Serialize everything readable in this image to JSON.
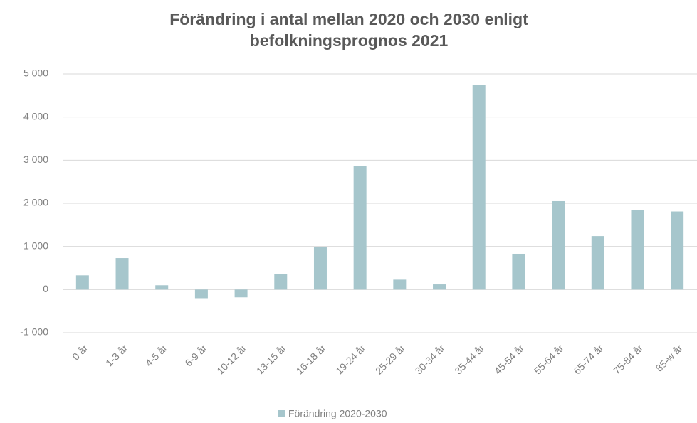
{
  "chart_data": {
    "type": "bar",
    "title": "Förändring i antal mellan 2020 och 2030 enligt befolkningsprognos 2021",
    "categories": [
      "0 år",
      "1-3 år",
      "4-5 år",
      "6-9 år",
      "10-12 år",
      "13-15 år",
      "16-18 år",
      "19-24 år",
      "25-29 år",
      "30-34 år",
      "35-44 år",
      "45-54 år",
      "55-64 år",
      "65-74 år",
      "75-84 år",
      "85-w år"
    ],
    "series": [
      {
        "name": "Förändring 2020-2030",
        "color": "#a6c6cc",
        "values": [
          330,
          730,
          100,
          -200,
          -180,
          360,
          990,
          2870,
          230,
          120,
          4750,
          830,
          2050,
          1240,
          1850,
          1810
        ]
      }
    ],
    "ylim": [
      -1000,
      5000
    ],
    "yticks": [
      {
        "value": -1000,
        "label": "-1 000"
      },
      0,
      {
        "value": 1000,
        "label": "1 000"
      },
      {
        "value": 2000,
        "label": "2 000"
      },
      {
        "value": 3000,
        "label": "3 000"
      },
      {
        "value": 4000,
        "label": "4 000"
      },
      {
        "value": 5000,
        "label": "5 000"
      }
    ],
    "grid": true,
    "legend": "bottom"
  }
}
